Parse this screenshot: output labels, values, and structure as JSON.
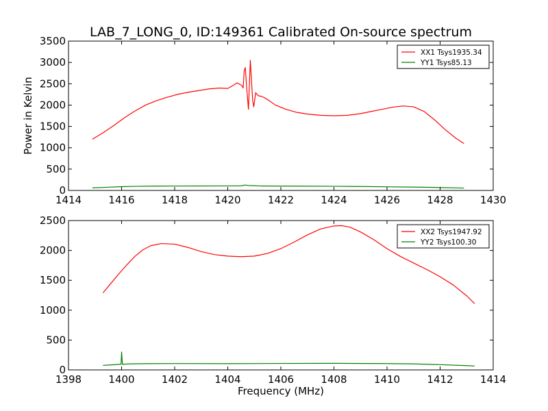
{
  "chart_data": [
    {
      "type": "line",
      "title": "LAB_7_LONG_0, ID:149361 Calibrated On-source spectrum",
      "xlabel": "",
      "ylabel": "Power in Kelvin",
      "xlim": [
        1414,
        1430
      ],
      "ylim": [
        0,
        3500
      ],
      "xticks": [
        "1414",
        "1416",
        "1418",
        "1420",
        "1422",
        "1424",
        "1426",
        "1428",
        "1430"
      ],
      "yticks": [
        "0",
        "500",
        "1000",
        "1500",
        "2000",
        "2500",
        "3000",
        "3500"
      ],
      "legend_position": "top-right",
      "series": [
        {
          "name": "XX1 Tsys1935.34",
          "color": "#ff0000",
          "x": [
            1414.9,
            1415.3,
            1415.7,
            1416.1,
            1416.5,
            1416.9,
            1417.3,
            1417.7,
            1418.1,
            1418.5,
            1418.9,
            1419.3,
            1419.7,
            1420.0,
            1420.2,
            1420.35,
            1420.5,
            1420.55,
            1420.58,
            1420.62,
            1420.66,
            1420.72,
            1420.78,
            1420.85,
            1420.9,
            1420.94,
            1420.98,
            1421.05,
            1421.15,
            1421.3,
            1421.5,
            1421.8,
            1422.2,
            1422.6,
            1423.0,
            1423.5,
            1424.0,
            1424.5,
            1425.0,
            1425.4,
            1425.8,
            1426.2,
            1426.6,
            1427.0,
            1427.4,
            1427.8,
            1428.2,
            1428.6,
            1428.9
          ],
          "values": [
            1200,
            1350,
            1520,
            1700,
            1860,
            2000,
            2100,
            2180,
            2250,
            2300,
            2340,
            2380,
            2400,
            2390,
            2460,
            2520,
            2470,
            2440,
            2400,
            2800,
            2880,
            2350,
            1900,
            3050,
            2500,
            2100,
            1960,
            2290,
            2220,
            2200,
            2130,
            2000,
            1900,
            1830,
            1790,
            1760,
            1750,
            1760,
            1800,
            1850,
            1900,
            1950,
            1980,
            1960,
            1850,
            1650,
            1420,
            1220,
            1100
          ]
        },
        {
          "name": "YY1 Tsys85.13",
          "color": "#008000",
          "x": [
            1414.9,
            1415.5,
            1416.0,
            1416.5,
            1417.0,
            1417.5,
            1418.0,
            1419.0,
            1420.0,
            1420.5,
            1420.65,
            1420.8,
            1420.95,
            1421.2,
            1422.0,
            1423.0,
            1424.0,
            1425.0,
            1426.0,
            1427.0,
            1428.0,
            1428.9
          ],
          "values": [
            60,
            75,
            88,
            95,
            100,
            102,
            103,
            104,
            105,
            108,
            125,
            115,
            112,
            105,
            102,
            100,
            97,
            92,
            85,
            78,
            68,
            55
          ]
        }
      ]
    },
    {
      "type": "line",
      "title": "",
      "xlabel": "Frequency (MHz)",
      "ylabel": "",
      "xlim": [
        1398,
        1414
      ],
      "ylim": [
        0,
        2500
      ],
      "xticks": [
        "1398",
        "1400",
        "1402",
        "1404",
        "1406",
        "1408",
        "1410",
        "1412",
        "1414"
      ],
      "yticks": [
        "0",
        "500",
        "1000",
        "1500",
        "2000",
        "2500"
      ],
      "legend_position": "top-right",
      "series": [
        {
          "name": "XX2 Tsys1947.92",
          "color": "#ff0000",
          "x": [
            1399.3,
            1399.6,
            1399.9,
            1400.2,
            1400.5,
            1400.8,
            1401.1,
            1401.5,
            1402.0,
            1402.5,
            1403.0,
            1403.5,
            1404.0,
            1404.5,
            1405.0,
            1405.5,
            1406.0,
            1406.5,
            1407.0,
            1407.5,
            1408.0,
            1408.3,
            1408.6,
            1409.0,
            1409.5,
            1410.0,
            1410.5,
            1411.0,
            1411.5,
            1412.0,
            1412.5,
            1413.0,
            1413.3
          ],
          "values": [
            1290,
            1450,
            1610,
            1760,
            1900,
            2010,
            2080,
            2115,
            2105,
            2050,
            1980,
            1930,
            1905,
            1895,
            1905,
            1950,
            2030,
            2140,
            2260,
            2360,
            2410,
            2415,
            2390,
            2310,
            2180,
            2030,
            1900,
            1790,
            1680,
            1560,
            1420,
            1240,
            1110
          ]
        },
        {
          "name": "YY2 Tsys100.30",
          "color": "#008000",
          "x": [
            1399.3,
            1399.6,
            1399.9,
            1399.98,
            1400.0,
            1400.03,
            1400.3,
            1400.7,
            1401.0,
            1402.0,
            1404.0,
            1406.0,
            1408.0,
            1410.0,
            1411.0,
            1412.0,
            1413.0,
            1413.3
          ],
          "values": [
            75,
            85,
            92,
            95,
            300,
            95,
            100,
            103,
            105,
            107,
            105,
            108,
            110,
            106,
            100,
            88,
            72,
            65
          ]
        }
      ]
    }
  ]
}
